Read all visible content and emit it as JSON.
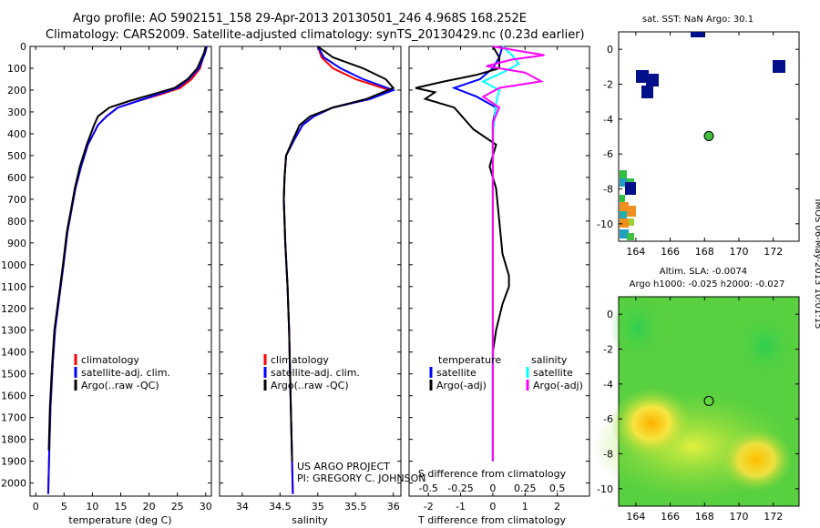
{
  "header": {
    "line1": "Argo profile: AO 5902151_158 29-Apr-2013 20130501_246 4.968S 168.252E",
    "line2": "Climatology: CARS2009. Satellite-adjusted climatology: synTS_20130429.nc (0.23d earlier)"
  },
  "credits": {
    "line1": "US ARGO PROJECT",
    "line2": "PI: GREGORY C. JOHNSON"
  },
  "timestamp": "IMOS 06-May-2013 10:01:15",
  "chart_data": [
    {
      "type": "line",
      "xlabel": "temperature (deg C)",
      "xlim": [
        -1,
        31
      ],
      "ylim": [
        2060,
        0
      ],
      "xticks": [
        0,
        5,
        10,
        15,
        20,
        25,
        30
      ],
      "yticks": [
        0,
        100,
        200,
        300,
        400,
        500,
        600,
        700,
        800,
        900,
        1000,
        1100,
        1200,
        1300,
        1400,
        1500,
        1600,
        1700,
        1800,
        1900,
        2000
      ],
      "legend": [
        "climatology",
        "satellite-adj. clim.",
        "Argo(..raw -QC)"
      ],
      "series": [
        {
          "name": "climatology",
          "color": "#ff0000",
          "x": [
            30.1,
            29.8,
            29.0,
            27.5,
            25.5,
            22.0,
            18.0,
            14.5,
            12.5,
            11.0,
            9.2,
            8.0,
            7.0,
            6.3,
            5.6,
            4.9,
            4.4,
            3.9,
            3.4,
            3.0,
            2.6,
            2.4,
            2.2
          ],
          "y": [
            0,
            30,
            100,
            150,
            190,
            220,
            250,
            280,
            320,
            360,
            450,
            550,
            650,
            750,
            850,
            1000,
            1100,
            1200,
            1300,
            1450,
            1650,
            1850,
            2050
          ]
        },
        {
          "name": "satellite-adj. clim.",
          "color": "#0000ff",
          "x": [
            30.2,
            29.9,
            28.8,
            27.0,
            25.0,
            21.5,
            18.0,
            14.5,
            12.5,
            11.0,
            9.2,
            8.0,
            7.0,
            6.3,
            5.6,
            4.9,
            4.4,
            3.9,
            3.4,
            3.0,
            2.6,
            2.4,
            2.2
          ],
          "y": [
            0,
            30,
            100,
            150,
            190,
            220,
            250,
            280,
            320,
            360,
            450,
            550,
            650,
            750,
            850,
            1000,
            1100,
            1200,
            1300,
            1450,
            1650,
            1850,
            2050
          ]
        },
        {
          "name": "Argo(..raw -QC)",
          "color": "#000000",
          "x": [
            30.0,
            29.7,
            28.5,
            26.8,
            24.5,
            20.5,
            16.5,
            13.0,
            11.0,
            10.3,
            9.0,
            7.8,
            6.9,
            6.2,
            5.5,
            4.8,
            4.3,
            3.8,
            3.3,
            2.9,
            2.5,
            2.3
          ],
          "y": [
            0,
            30,
            100,
            150,
            190,
            220,
            250,
            280,
            320,
            360,
            450,
            550,
            650,
            750,
            850,
            1000,
            1100,
            1200,
            1300,
            1450,
            1650,
            1850
          ]
        }
      ]
    },
    {
      "type": "line",
      "xlabel": "salinity",
      "xlim": [
        33.7,
        36.1
      ],
      "ylim": [
        2060,
        0
      ],
      "xticks": [
        34,
        34.5,
        35,
        35.5,
        36
      ],
      "legend": [
        "climatology",
        "satellite-adj. clim.",
        "Argo(..raw -QC)"
      ],
      "series": [
        {
          "name": "climatology",
          "color": "#ff0000",
          "x": [
            35.0,
            35.05,
            35.2,
            35.5,
            35.95,
            35.7,
            35.2,
            34.95,
            34.8,
            34.7,
            34.58,
            34.56,
            34.55,
            34.56,
            34.57,
            34.6,
            34.62,
            34.64,
            34.66,
            34.67
          ],
          "y": [
            0,
            50,
            100,
            150,
            200,
            240,
            280,
            320,
            360,
            420,
            500,
            600,
            700,
            800,
            900,
            1100,
            1300,
            1600,
            1900,
            2050
          ]
        },
        {
          "name": "satellite-adj. clim.",
          "color": "#0000ff",
          "x": [
            35.0,
            35.08,
            35.3,
            35.6,
            36.0,
            35.7,
            35.2,
            34.95,
            34.8,
            34.7,
            34.58,
            34.56,
            34.55,
            34.56,
            34.57,
            34.6,
            34.62,
            34.64,
            34.66,
            34.67
          ],
          "y": [
            0,
            50,
            100,
            150,
            200,
            240,
            280,
            320,
            360,
            420,
            500,
            600,
            700,
            800,
            900,
            1100,
            1300,
            1600,
            1900,
            2050
          ]
        },
        {
          "name": "Argo(..raw -QC)",
          "color": "#000000",
          "x": [
            35.0,
            35.2,
            35.6,
            35.9,
            36.0,
            35.65,
            35.2,
            34.9,
            34.76,
            34.68,
            34.58,
            34.56,
            34.55,
            34.56,
            34.57,
            34.6,
            34.62,
            34.64,
            34.66
          ],
          "y": [
            0,
            50,
            100,
            150,
            190,
            240,
            280,
            320,
            360,
            420,
            500,
            600,
            700,
            800,
            900,
            1100,
            1300,
            1600,
            1900
          ]
        }
      ]
    },
    {
      "type": "line",
      "xlabel_top": "S difference from climatology",
      "xlabel": "T difference from climatology",
      "xlim": [
        -2.6,
        3.0
      ],
      "ylim": [
        2060,
        0
      ],
      "xticks": [
        -2,
        -1,
        0,
        1,
        2
      ],
      "sticks_label": [
        "-0.5",
        "-0.25",
        "0",
        "0.25",
        "0.5"
      ],
      "legend_left_title": "temperature",
      "legend_right_title": "salinity",
      "legend_left": [
        "satellite",
        "Argo(-adj)"
      ],
      "legend_right": [
        "satellite",
        "Argo(-adj)"
      ],
      "series": [
        {
          "name": "T satellite",
          "color": "#0000ff",
          "x": [
            0.3,
            0.2,
            0,
            -0.4,
            -1.2,
            -0.5,
            0.1,
            0,
            0,
            0,
            0,
            0,
            0
          ],
          "y": [
            0,
            50,
            100,
            150,
            190,
            230,
            280,
            350,
            500,
            800,
            1200,
            1600,
            1900
          ]
        },
        {
          "name": "T Argo(-adj)",
          "color": "#000000",
          "x": [
            0,
            0.2,
            0.2,
            -0.5,
            -1.5,
            -2.4,
            -1.8,
            -2.1,
            -1.2,
            -0.9,
            -0.6,
            0.1,
            -0.1,
            0.1,
            0.2,
            0.3,
            0.5,
            0.5,
            0.3,
            0.1,
            0,
            0,
            0,
            0
          ],
          "y": [
            0,
            50,
            100,
            130,
            160,
            190,
            210,
            240,
            280,
            330,
            380,
            450,
            550,
            650,
            800,
            950,
            1050,
            1100,
            1180,
            1300,
            1400,
            1500,
            1700,
            1900
          ]
        },
        {
          "name": "S satellite",
          "color": "#00ffff",
          "x": [
            0.3,
            0.6,
            0.8,
            0.3,
            -0.3,
            0.2,
            0.1,
            0,
            0,
            0,
            0
          ],
          "y": [
            0,
            40,
            80,
            120,
            160,
            200,
            260,
            400,
            800,
            1300,
            1900
          ]
        },
        {
          "name": "S Argo(-adj)",
          "color": "#ff00ff",
          "x": [
            0,
            1.6,
            0.6,
            -0.2,
            1.0,
            1.5,
            0.2,
            -0.3,
            0.2,
            0,
            0,
            0,
            0,
            0
          ],
          "y": [
            0,
            40,
            60,
            90,
            120,
            160,
            190,
            230,
            280,
            350,
            500,
            900,
            1400,
            1900
          ]
        }
      ]
    },
    {
      "type": "heatmap",
      "title": "sat. SST: NaN Argo: 30.1",
      "xlim": [
        163,
        173.5
      ],
      "ylim": [
        -11,
        1
      ],
      "xticks": [
        164,
        166,
        168,
        170,
        172
      ],
      "yticks": [
        0,
        -2,
        -4,
        -6,
        -8,
        -10
      ],
      "argo_position": [
        168.25,
        -4.97
      ]
    },
    {
      "type": "heatmap",
      "title": "Altim. SLA: -0.0074",
      "subtitle": "Argo h1000: -0.025 h2000: -0.027",
      "xlim": [
        163,
        173.5
      ],
      "ylim": [
        -11,
        1
      ],
      "xticks": [
        164,
        166,
        168,
        170,
        172
      ],
      "yticks": [
        0,
        -2,
        -4,
        -6,
        -8,
        -10
      ],
      "argo_position": [
        168.25,
        -4.97
      ]
    }
  ]
}
